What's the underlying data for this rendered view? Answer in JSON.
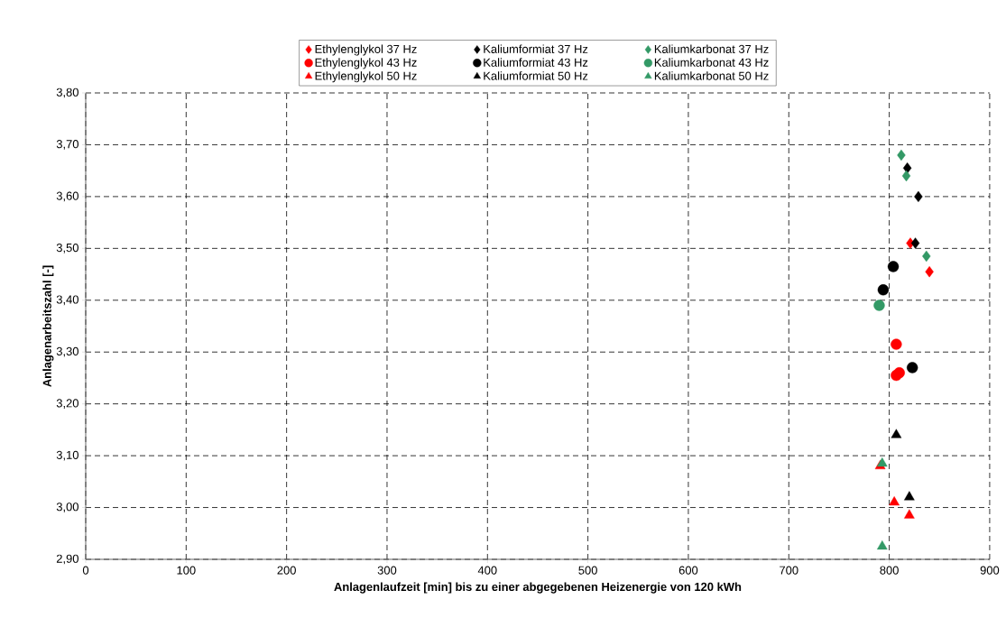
{
  "chart_data": {
    "type": "scatter",
    "xlabel": "Anlagenlaufzeit [min] bis zu einer abgegebenen Heizenergie von 120 kWh",
    "ylabel": "Anlagenarbeitszahl [-]",
    "xlim": [
      0,
      900
    ],
    "ylim": [
      2.9,
      3.8
    ],
    "xticks": [
      0,
      100,
      200,
      300,
      400,
      500,
      600,
      700,
      800,
      900
    ],
    "yticks": [
      {
        "value": 2.9,
        "label": "2,90"
      },
      {
        "value": 3.0,
        "label": "3,00"
      },
      {
        "value": 3.1,
        "label": "3,10"
      },
      {
        "value": 3.2,
        "label": "3,20"
      },
      {
        "value": 3.3,
        "label": "3,30"
      },
      {
        "value": 3.4,
        "label": "3,40"
      },
      {
        "value": 3.5,
        "label": "3,50"
      },
      {
        "value": 3.6,
        "label": "3,60"
      },
      {
        "value": 3.7,
        "label": "3,70"
      },
      {
        "value": 3.8,
        "label": "3,80"
      }
    ],
    "grid": true,
    "legend": "top",
    "series": [
      {
        "name": "Ethylenglykol 37 Hz",
        "color": "#ff0000",
        "marker": "diamond",
        "x": [
          821,
          840
        ],
        "values": [
          3.51,
          3.455
        ]
      },
      {
        "name": "Kaliumformiat 37 Hz",
        "color": "#000000",
        "marker": "diamond",
        "x": [
          818,
          829,
          826
        ],
        "values": [
          3.655,
          3.6,
          3.51
        ]
      },
      {
        "name": "Kaliumkarbonat 37 Hz",
        "color": "#339966",
        "marker": "diamond",
        "x": [
          812,
          817,
          837
        ],
        "values": [
          3.68,
          3.64,
          3.485
        ]
      },
      {
        "name": "Ethylenglykol 43 Hz",
        "color": "#ff0000",
        "marker": "circle",
        "x": [
          807,
          810,
          807
        ],
        "values": [
          3.315,
          3.26,
          3.255
        ]
      },
      {
        "name": "Kaliumformiat 43 Hz",
        "color": "#000000",
        "marker": "circle",
        "x": [
          804,
          794,
          823
        ],
        "values": [
          3.465,
          3.42,
          3.27
        ]
      },
      {
        "name": "Kaliumkarbonat 43 Hz",
        "color": "#339966",
        "marker": "circle",
        "x": [
          790
        ],
        "values": [
          3.39
        ]
      },
      {
        "name": "Ethylenglykol 50 Hz",
        "color": "#ff0000",
        "marker": "triangle",
        "x": [
          791,
          805,
          820
        ],
        "values": [
          3.08,
          3.01,
          2.985
        ]
      },
      {
        "name": "Kaliumformiat 50 Hz",
        "color": "#000000",
        "marker": "triangle",
        "x": [
          807,
          820
        ],
        "values": [
          3.14,
          3.02
        ]
      },
      {
        "name": "Kaliumkarbonat 50 Hz",
        "color": "#339966",
        "marker": "triangle",
        "x": [
          793,
          793
        ],
        "values": [
          3.085,
          2.925
        ]
      }
    ]
  }
}
